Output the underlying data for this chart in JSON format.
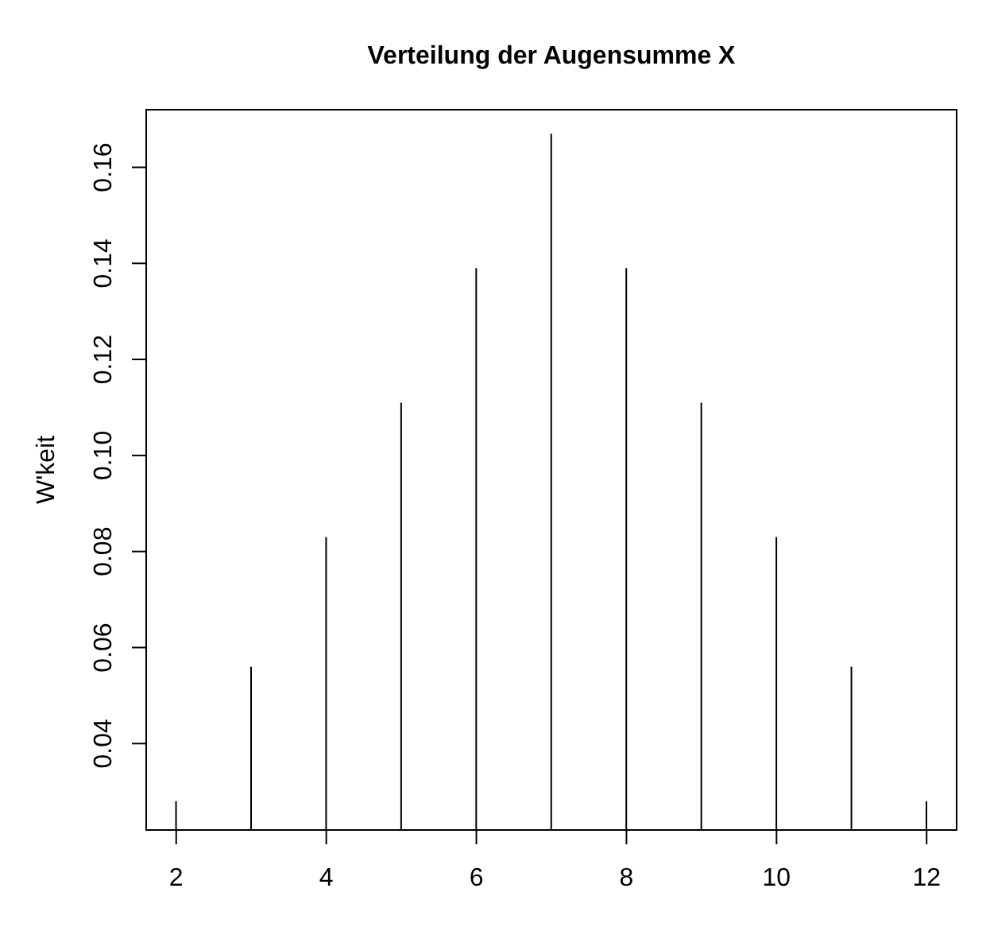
{
  "chart_data": {
    "type": "bar",
    "title": "Verteilung der Augensumme X",
    "ylabel": "W'keit",
    "x": [
      2,
      3,
      4,
      5,
      6,
      7,
      8,
      9,
      10,
      11,
      12
    ],
    "values": [
      0.028,
      0.056,
      0.083,
      0.111,
      0.139,
      0.167,
      0.139,
      0.111,
      0.083,
      0.056,
      0.028
    ],
    "color": "#000000",
    "xlim": [
      1.6,
      12.4
    ],
    "ylim": [
      0.022,
      0.172
    ],
    "xticks": [
      2,
      4,
      6,
      8,
      10,
      12
    ],
    "yticks": [
      0.04,
      0.06,
      0.08,
      {
        "value": 0.1,
        "label": "0.10"
      },
      0.12,
      0.14,
      0.16
    ]
  }
}
